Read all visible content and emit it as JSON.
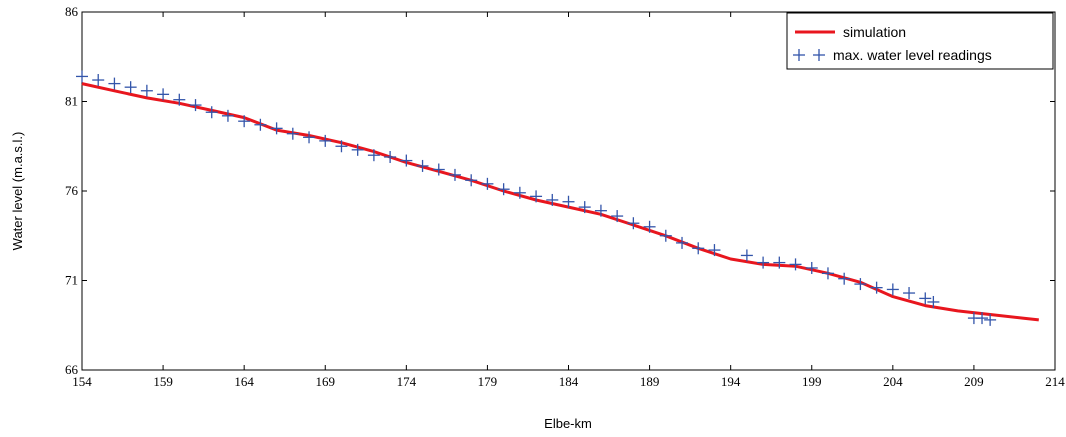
{
  "chart_data": {
    "type": "line",
    "title": "",
    "xlabel": "Elbe-km",
    "ylabel": "Water level (m.a.s.l.)",
    "xlim": [
      154,
      214
    ],
    "ylim": [
      66,
      86
    ],
    "xticks": [
      154,
      159,
      164,
      169,
      174,
      179,
      184,
      189,
      194,
      199,
      204,
      209,
      214
    ],
    "yticks": [
      66,
      71,
      76,
      81,
      86
    ],
    "grid": false,
    "legend_position": "top-right",
    "series": [
      {
        "name": "simulation",
        "style": "line",
        "color": "#e8161e",
        "x": [
          154,
          156,
          158,
          160,
          162,
          164,
          166,
          168,
          170,
          172,
          174,
          176,
          178,
          180,
          182,
          184,
          186,
          188,
          190,
          192,
          194,
          196,
          198,
          200,
          202,
          204,
          206,
          208,
          210,
          212,
          213
        ],
        "y": [
          82.0,
          81.6,
          81.2,
          80.9,
          80.5,
          80.1,
          79.4,
          79.1,
          78.7,
          78.2,
          77.6,
          77.1,
          76.6,
          76.0,
          75.5,
          75.1,
          74.7,
          74.1,
          73.5,
          72.8,
          72.2,
          71.9,
          71.8,
          71.4,
          70.9,
          70.1,
          69.6,
          69.3,
          69.1,
          68.9,
          68.8
        ]
      },
      {
        "name": "max. water level readings",
        "style": "plus",
        "color": "#3355aa",
        "x": [
          154,
          155,
          156,
          157,
          158,
          159,
          160,
          161,
          162,
          163,
          164,
          165,
          166,
          167,
          168,
          169,
          170,
          171,
          172,
          173,
          174,
          175,
          176,
          177,
          178,
          179,
          180,
          181,
          182,
          183,
          184,
          185,
          186,
          187,
          188,
          189,
          190,
          191,
          192,
          193,
          195,
          196,
          197,
          198,
          199,
          200,
          201,
          202,
          203,
          204,
          205,
          206,
          206.5,
          209,
          209.5,
          210
        ],
        "y": [
          82.4,
          82.2,
          82.0,
          81.8,
          81.6,
          81.4,
          81.1,
          80.8,
          80.4,
          80.2,
          79.9,
          79.7,
          79.5,
          79.2,
          79.0,
          78.8,
          78.5,
          78.3,
          78.0,
          77.9,
          77.7,
          77.4,
          77.2,
          76.9,
          76.6,
          76.4,
          76.1,
          75.9,
          75.7,
          75.5,
          75.4,
          75.1,
          74.9,
          74.6,
          74.2,
          74.0,
          73.5,
          73.1,
          72.8,
          72.7,
          72.4,
          72.0,
          72.0,
          71.9,
          71.7,
          71.4,
          71.1,
          70.8,
          70.6,
          70.5,
          70.3,
          70.0,
          69.8,
          68.9,
          68.9,
          68.8
        ]
      }
    ]
  }
}
